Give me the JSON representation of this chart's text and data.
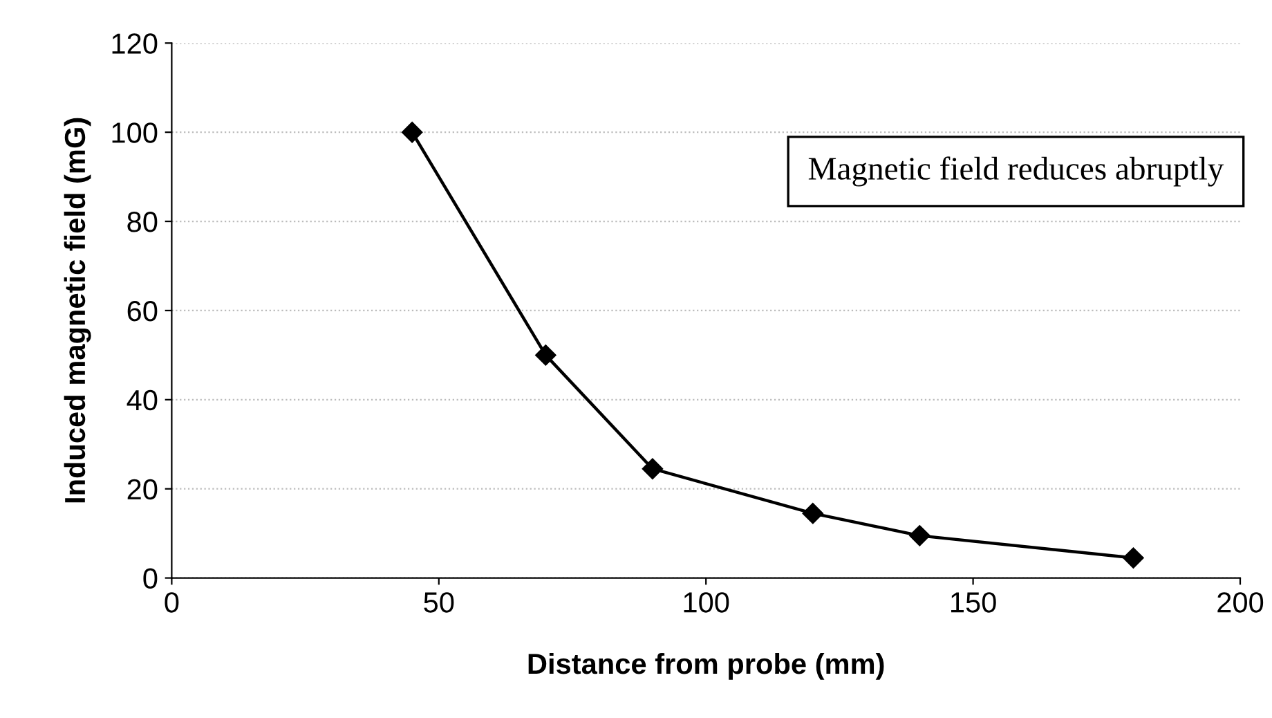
{
  "chart_data": {
    "type": "line",
    "xlabel": "Distance from probe (mm)",
    "ylabel": "Induced magnetic field (mG)",
    "x": [
      45,
      70,
      90,
      120,
      140,
      180
    ],
    "series": [
      {
        "color": "#000000",
        "values": [
          100,
          50,
          24.5,
          14.5,
          9.5,
          4.5
        ]
      }
    ],
    "marker": "diamond",
    "line_style": "solid",
    "grid": "y",
    "xlim": [
      0,
      200
    ],
    "xticks": [
      0,
      50,
      100,
      150,
      200
    ],
    "ylim": [
      0,
      120
    ],
    "yticks": [
      0,
      20,
      40,
      60,
      80,
      100,
      120
    ],
    "annotations": [
      "Magnetic field reduces abruptly"
    ]
  }
}
